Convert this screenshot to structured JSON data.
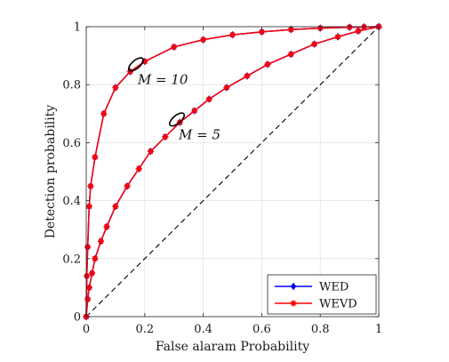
{
  "chart_data": {
    "type": "line",
    "xlabel": "False alaram Probability",
    "ylabel": "Detection probability",
    "xlim": [
      0,
      1
    ],
    "ylim": [
      0,
      1
    ],
    "xticks": [
      "0",
      "0.2",
      "0.4",
      "0.6",
      "0.8",
      "1"
    ],
    "yticks": [
      "0",
      "0.2",
      "0.4",
      "0.6",
      "0.8",
      "1"
    ],
    "grid": true,
    "legend_position": "bottom-right",
    "series": [
      {
        "name": "WED",
        "group": "M = 10",
        "color": "#0000ff",
        "marker": "diamond",
        "x": [
          0,
          0.002,
          0.005,
          0.01,
          0.015,
          0.03,
          0.06,
          0.1,
          0.15,
          0.2,
          0.3,
          0.4,
          0.5,
          0.6,
          0.7,
          0.8,
          0.9,
          0.95,
          1.0
        ],
        "y": [
          0,
          0.14,
          0.24,
          0.38,
          0.45,
          0.55,
          0.7,
          0.79,
          0.845,
          0.88,
          0.93,
          0.955,
          0.972,
          0.982,
          0.99,
          0.995,
          0.998,
          0.999,
          1.0
        ]
      },
      {
        "name": "WEVD",
        "group": "M = 10",
        "color": "#ff0000",
        "marker": "star",
        "x": [
          0,
          0.002,
          0.005,
          0.01,
          0.015,
          0.03,
          0.06,
          0.1,
          0.15,
          0.2,
          0.3,
          0.4,
          0.5,
          0.6,
          0.7,
          0.8,
          0.9,
          0.95,
          1.0
        ],
        "y": [
          0,
          0.14,
          0.24,
          0.38,
          0.45,
          0.55,
          0.7,
          0.79,
          0.845,
          0.88,
          0.93,
          0.955,
          0.972,
          0.982,
          0.99,
          0.995,
          0.998,
          0.999,
          1.0
        ]
      },
      {
        "name": "WED",
        "group": "M = 5",
        "color": "#0000ff",
        "marker": "diamond",
        "x": [
          0,
          0.005,
          0.01,
          0.02,
          0.03,
          0.05,
          0.07,
          0.1,
          0.14,
          0.18,
          0.22,
          0.27,
          0.32,
          0.37,
          0.42,
          0.48,
          0.55,
          0.62,
          0.7,
          0.78,
          0.86,
          0.93,
          1.0
        ],
        "y": [
          0,
          0.06,
          0.1,
          0.15,
          0.2,
          0.26,
          0.31,
          0.38,
          0.45,
          0.51,
          0.57,
          0.62,
          0.67,
          0.71,
          0.75,
          0.79,
          0.83,
          0.87,
          0.905,
          0.94,
          0.965,
          0.985,
          1.0
        ]
      },
      {
        "name": "WEVD",
        "group": "M = 5",
        "color": "#ff0000",
        "marker": "star",
        "x": [
          0,
          0.005,
          0.01,
          0.02,
          0.03,
          0.05,
          0.07,
          0.1,
          0.14,
          0.18,
          0.22,
          0.27,
          0.32,
          0.37,
          0.42,
          0.48,
          0.55,
          0.62,
          0.7,
          0.78,
          0.86,
          0.93,
          1.0
        ],
        "y": [
          0,
          0.06,
          0.1,
          0.15,
          0.2,
          0.26,
          0.31,
          0.38,
          0.45,
          0.51,
          0.57,
          0.62,
          0.67,
          0.71,
          0.75,
          0.79,
          0.83,
          0.87,
          0.905,
          0.94,
          0.965,
          0.985,
          1.0
        ]
      }
    ],
    "reference_line": {
      "style": "dashed",
      "color": "#000000",
      "x": [
        0,
        1
      ],
      "y": [
        0,
        1
      ]
    },
    "annotations": [
      {
        "text": "M = 10",
        "x": 0.17,
        "y": 0.87
      },
      {
        "text": "M = 5",
        "x": 0.31,
        "y": 0.68
      }
    ],
    "legend": [
      {
        "label": "WED",
        "color": "#0000ff",
        "marker": "diamond"
      },
      {
        "label": "WEVD",
        "color": "#ff0000",
        "marker": "star"
      }
    ]
  }
}
